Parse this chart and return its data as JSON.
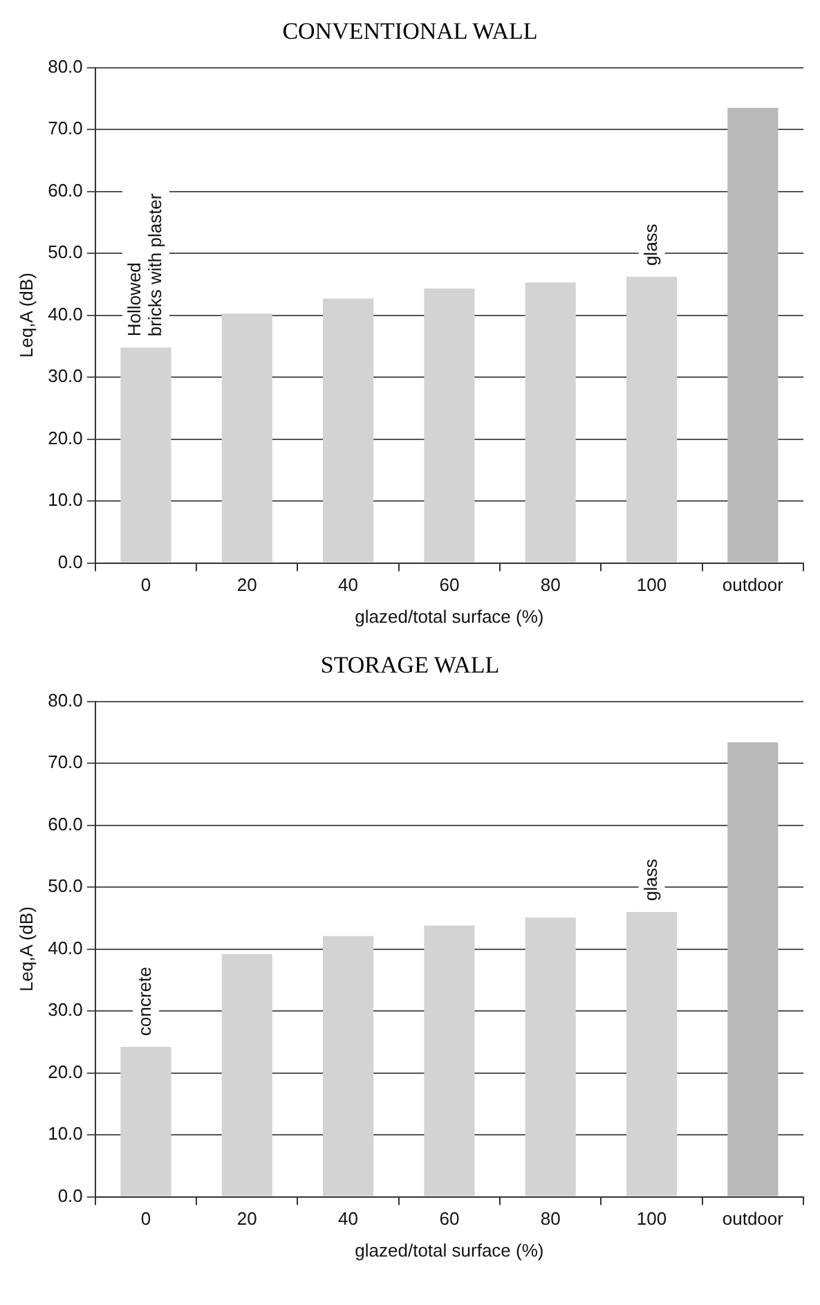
{
  "chart_data": [
    {
      "type": "bar",
      "title": "CONVENTIONAL WALL",
      "xlabel": "glazed/total surface (%)",
      "ylabel": "Leq,A (dB)",
      "categories": [
        "0",
        "20",
        "40",
        "60",
        "80",
        "100",
        "outdoor"
      ],
      "values": [
        34.8,
        40.3,
        42.7,
        44.3,
        45.3,
        46.2,
        73.5
      ],
      "colors": [
        "#d3d3d3",
        "#d3d3d3",
        "#d3d3d3",
        "#d3d3d3",
        "#d3d3d3",
        "#d3d3d3",
        "#b9b9b9"
      ],
      "ylim": [
        0,
        80
      ],
      "yticks": [
        {
          "value": 0,
          "label": "0.0"
        },
        {
          "value": 10,
          "label": "10.0"
        },
        {
          "value": 20,
          "label": "20.0"
        },
        {
          "value": 30,
          "label": "30.0"
        },
        {
          "value": 40,
          "label": "40.0"
        },
        {
          "value": 50,
          "label": "50.0"
        },
        {
          "value": 60,
          "label": "60.0"
        },
        {
          "value": 70,
          "label": "70.0"
        },
        {
          "value": 80,
          "label": "80.0"
        }
      ],
      "grid": "y",
      "legend": false,
      "annotations": [
        {
          "text": "Hollowed bricks with plaster",
          "x": "0",
          "y": 34.8
        },
        {
          "text": "glass",
          "x": "100",
          "y": 46.2
        }
      ]
    },
    {
      "type": "bar",
      "title": "STORAGE WALL",
      "xlabel": "glazed/total surface (%)",
      "ylabel": "Leq,A (dB)",
      "categories": [
        "0",
        "20",
        "40",
        "60",
        "80",
        "100",
        "outdoor"
      ],
      "values": [
        24.2,
        39.2,
        42.1,
        43.8,
        45.1,
        46.0,
        73.4
      ],
      "colors": [
        "#d3d3d3",
        "#d3d3d3",
        "#d3d3d3",
        "#d3d3d3",
        "#d3d3d3",
        "#d3d3d3",
        "#b9b9b9"
      ],
      "ylim": [
        0,
        80
      ],
      "yticks": [
        {
          "value": 0,
          "label": "0.0"
        },
        {
          "value": 10,
          "label": "10.0"
        },
        {
          "value": 20,
          "label": "20.0"
        },
        {
          "value": 30,
          "label": "30.0"
        },
        {
          "value": 40,
          "label": "40.0"
        },
        {
          "value": 50,
          "label": "50.0"
        },
        {
          "value": 60,
          "label": "60.0"
        },
        {
          "value": 70,
          "label": "70.0"
        },
        {
          "value": 80,
          "label": "80.0"
        }
      ],
      "grid": "y",
      "legend": false,
      "annotations": [
        {
          "text": "concrete",
          "x": "0",
          "y": 24.2
        },
        {
          "text": "glass",
          "x": "100",
          "y": 46.0
        }
      ]
    }
  ]
}
